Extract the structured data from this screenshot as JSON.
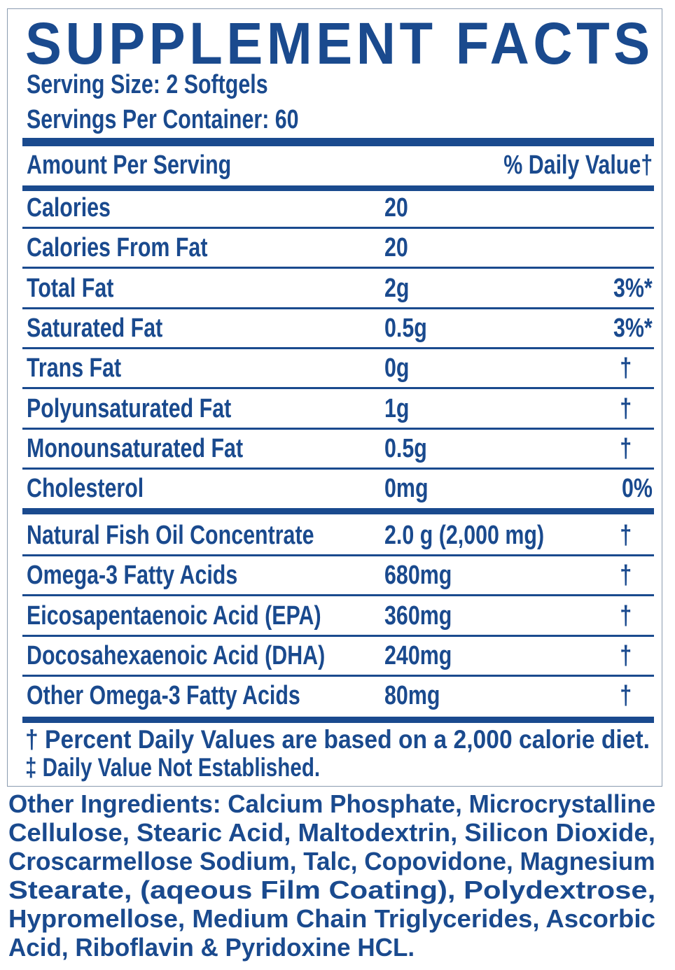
{
  "title": "SUPPLEMENT FACTS",
  "serving_size": "Serving Size: 2 Softgels",
  "servings_per_container": "Servings Per Container: 60",
  "header": {
    "amount": "Amount Per Serving",
    "daily_value": "% Daily Value†"
  },
  "nutrients": [
    {
      "name": "Calories",
      "amount": "20",
      "dv": ""
    },
    {
      "name": "Calories From Fat",
      "amount": "20",
      "dv": ""
    },
    {
      "name": "Total Fat",
      "amount": "2g",
      "dv": "3%*"
    },
    {
      "name": "Saturated Fat",
      "amount": "0.5g",
      "dv": "3%*"
    },
    {
      "name": "Trans Fat",
      "amount": "0g",
      "dv": "†"
    },
    {
      "name": "Polyunsaturated Fat",
      "amount": "1g",
      "dv": "†"
    },
    {
      "name": "Monounsaturated Fat",
      "amount": "0.5g",
      "dv": "†"
    },
    {
      "name": "Cholesterol",
      "amount": "0mg",
      "dv": "0%"
    }
  ],
  "actives": [
    {
      "name": "Natural Fish Oil Concentrate",
      "amount": "2.0 g (2,000 mg)",
      "dv": "†"
    },
    {
      "name": "Omega-3 Fatty Acids",
      "amount": "680mg",
      "dv": "†"
    },
    {
      "name": "Eicosapentaenoic Acid (EPA)",
      "amount": "360mg",
      "dv": "†"
    },
    {
      "name": "Docosahexaenoic Acid (DHA)",
      "amount": "240mg",
      "dv": "†"
    },
    {
      "name": "Other Omega-3 Fatty Acids",
      "amount": "80mg",
      "dv": "†"
    }
  ],
  "footnotes": [
    "† Percent Daily Values are based on a 2,000 calorie diet.",
    "‡ Daily Value Not Established."
  ],
  "ingredients": {
    "label": "Other Ingredients:",
    "lines": [
      " Calcium Phosphate, Microcrystalline",
      "Cellulose, Stearic Acid, Maltodextrin, Silicon Dioxide,",
      "Croscarmellose Sodium, Talc, Copovidone, Magnesium",
      "Stearate, (aqeous Film Coating), Polydextrose,",
      "Hypromellose, Medium Chain Triglycerides, Ascorbic",
      "Acid, Riboflavin & Pyridoxine HCL."
    ]
  },
  "colors": {
    "text": "#1a4a8e",
    "border": "#8a9bb0"
  }
}
